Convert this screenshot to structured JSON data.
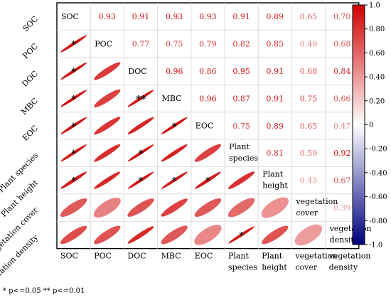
{
  "chart_data": {
    "type": "heatmap",
    "variables": [
      "SOC",
      "POC",
      "DOC",
      "MBC",
      "EOC",
      "Plant species",
      "Plant height",
      "vegetation cover",
      "vegetation density"
    ],
    "row_labels": [
      "SOC",
      "POC",
      "DOC",
      "MBC",
      "EOC",
      "Plant species",
      "Plant height",
      "vegetation cover",
      "vegetation density"
    ],
    "col_labels": [
      [
        "SOC"
      ],
      [
        "POC"
      ],
      [
        "DOC"
      ],
      [
        "MBC"
      ],
      [
        "EOC"
      ],
      [
        "Plant",
        "species"
      ],
      [
        "Plant",
        "height"
      ],
      [
        "vegetation",
        "cover"
      ],
      [
        "vegetation",
        "density"
      ]
    ],
    "diag_labels": [
      [
        "SOC"
      ],
      [
        "POC"
      ],
      [
        "DOC"
      ],
      [
        "MBC"
      ],
      [
        "EOC"
      ],
      [
        "Plant",
        "species"
      ],
      [
        "Plant",
        "height"
      ],
      [
        "vegetation",
        "cover"
      ],
      [
        "vegetation",
        "density"
      ]
    ],
    "matrix": [
      [
        1.0,
        0.93,
        0.91,
        0.93,
        0.93,
        0.91,
        0.89,
        0.65,
        0.7
      ],
      [
        0.93,
        1.0,
        0.77,
        0.75,
        0.79,
        0.82,
        0.85,
        0.49,
        0.68
      ],
      [
        0.91,
        0.77,
        1.0,
        0.96,
        0.86,
        0.95,
        0.91,
        0.68,
        0.84
      ],
      [
        0.93,
        0.75,
        0.96,
        1.0,
        0.96,
        0.87,
        0.91,
        0.75,
        0.66
      ],
      [
        0.93,
        0.79,
        0.86,
        0.96,
        1.0,
        0.75,
        0.89,
        0.65,
        0.47
      ],
      [
        0.91,
        0.82,
        0.95,
        0.87,
        0.75,
        1.0,
        0.81,
        0.59,
        0.92
      ],
      [
        0.89,
        0.85,
        0.91,
        0.91,
        0.89,
        0.81,
        1.0,
        0.43,
        0.67
      ],
      [
        0.65,
        0.49,
        0.68,
        0.75,
        0.65,
        0.59,
        0.43,
        1.0,
        0.39
      ],
      [
        0.7,
        0.68,
        0.84,
        0.66,
        0.47,
        0.92,
        0.67,
        0.39,
        1.0
      ]
    ],
    "upper_display": [
      "0.93",
      "0.91",
      "0.93",
      "0.93",
      "0.91",
      "0.89",
      "0.65",
      "0.70",
      "0.77",
      "0.75",
      "0.79",
      "0.82",
      "0.85",
      "0.49",
      "0.68",
      "0.96",
      "0.86",
      "0.95",
      "0.91",
      "0.68",
      "0.84",
      "0.96",
      "0.87",
      "0.91",
      "0.75",
      "0.66",
      "0.75",
      "0.89",
      "0.65",
      "0.47",
      "0.81",
      "0.59",
      "0.92",
      "0.43",
      "0.67",
      "0.39"
    ],
    "significance": [
      {
        "row": 1,
        "col": 0,
        "mark": "*"
      },
      {
        "row": 2,
        "col": 0,
        "mark": "*"
      },
      {
        "row": 3,
        "col": 0,
        "mark": "*"
      },
      {
        "row": 3,
        "col": 2,
        "mark": "**"
      },
      {
        "row": 4,
        "col": 0,
        "mark": "*"
      },
      {
        "row": 4,
        "col": 3,
        "mark": "*"
      },
      {
        "row": 5,
        "col": 0,
        "mark": "*"
      },
      {
        "row": 5,
        "col": 2,
        "mark": "*"
      },
      {
        "row": 6,
        "col": 0,
        "mark": "*"
      },
      {
        "row": 6,
        "col": 2,
        "mark": "*"
      },
      {
        "row": 6,
        "col": 3,
        "mark": "*"
      },
      {
        "row": 6,
        "col": 4,
        "mark": "*"
      },
      {
        "row": 8,
        "col": 5,
        "mark": "*"
      }
    ],
    "colorbar": {
      "range": [
        -1.0,
        1.0
      ],
      "ticks": [
        1.0,
        0.8,
        0.6,
        0.4,
        0.2,
        0,
        -0.2,
        -0.4,
        -0.6,
        -0.8,
        -1.0
      ],
      "tick_labels": [
        "1.0",
        "0.80",
        "0.60",
        "0.40",
        "0.20",
        "0",
        "-0.20",
        "-0.40",
        "-0.60",
        "-0.80",
        "-1.0"
      ],
      "colors": {
        "negative": "#000080",
        "zero": "#ffffff",
        "positive": "#d00000"
      }
    },
    "footnote": "* p<=0.05  ** p<=0.01"
  }
}
